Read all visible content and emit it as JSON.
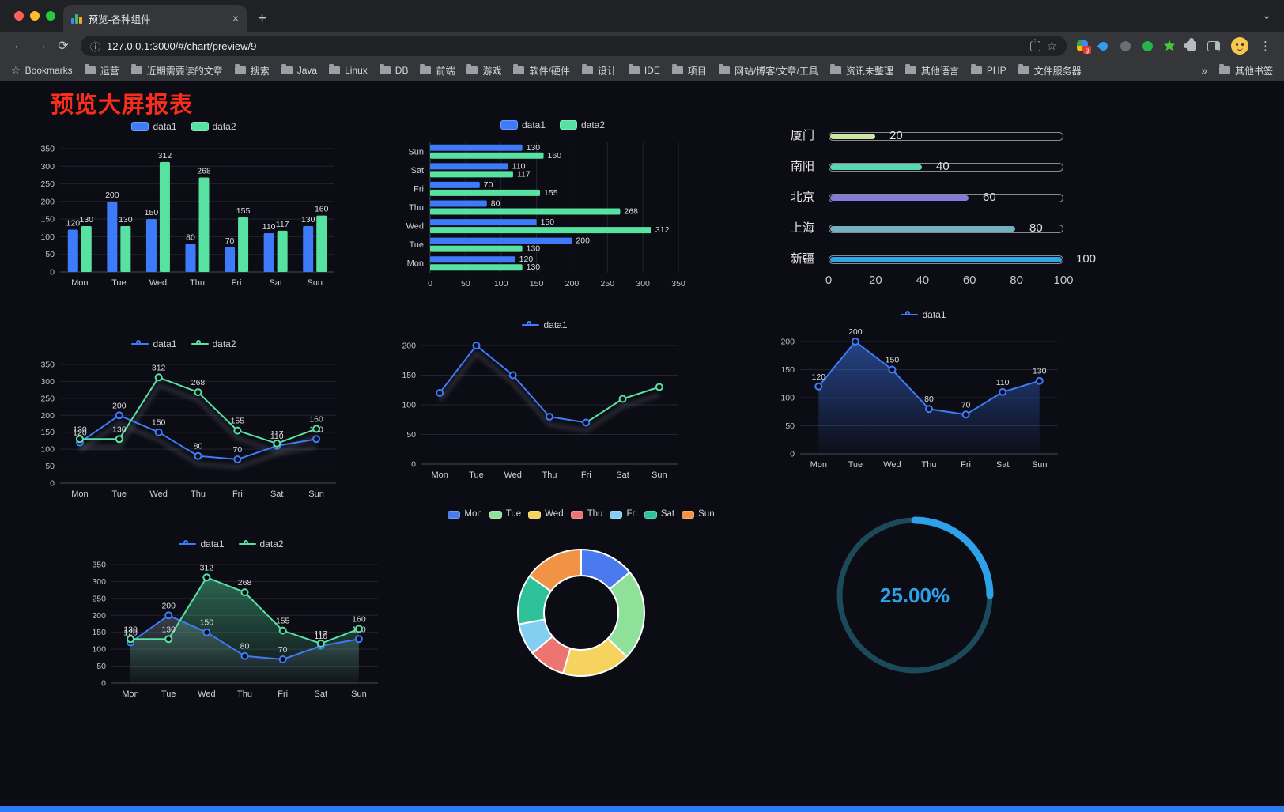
{
  "browser": {
    "tab_title": "预览-各种组件",
    "url": "127.0.0.1:3000/#/chart/preview/9",
    "traffic_light_colors": [
      "#ff5f57",
      "#febc2e",
      "#28c840"
    ],
    "bookmarks_bar": {
      "bookmarks_label": "Bookmarks",
      "folders": [
        "运营",
        "近期需要读的文章",
        "搜索",
        "Java",
        "Linux",
        "DB",
        "前端",
        "游戏",
        "软件/硬件",
        "设计",
        "IDE",
        "项目",
        "网站/博客/文章/工具",
        "资讯未整理",
        "其他语言",
        "PHP",
        "文件服务器"
      ],
      "overflow_label": "»",
      "other_bookmarks_label": "其他书签"
    }
  },
  "icons": {
    "back": "←",
    "forward": "→",
    "refresh": "⟳",
    "site_info": "ⓘ",
    "bookmark_star": "☆",
    "bookmarks_bar_star": "☆",
    "menu": "⋮",
    "new_tab": "+",
    "tab_close": "×",
    "tab_strip_chevron": "⌄",
    "extension_badge": "g"
  },
  "page": {
    "title": "预览大屏报表",
    "title_color": "#fa2c1c",
    "background": "#0c0c14",
    "footer_color": "#2b7cf0"
  },
  "chart_data": [
    {
      "id": "grouped-bar",
      "type": "bar",
      "categories": [
        "Mon",
        "Tue",
        "Wed",
        "Thu",
        "Fri",
        "Sat",
        "Sun"
      ],
      "series": [
        {
          "name": "data1",
          "color": "#3e7bfa",
          "values": [
            120,
            200,
            150,
            80,
            70,
            110,
            130
          ]
        },
        {
          "name": "data2",
          "color": "#58e2a2",
          "values": [
            130,
            130,
            312,
            268,
            155,
            117,
            160
          ]
        }
      ],
      "ylim": [
        0,
        350
      ],
      "yticks": [
        0,
        50,
        100,
        150,
        200,
        250,
        300,
        350
      ],
      "show_value_labels": true,
      "legend_position": "top",
      "grid": true
    },
    {
      "id": "horizontal-bar",
      "type": "bar",
      "orientation": "horizontal",
      "categories": [
        "Mon",
        "Tue",
        "Wed",
        "Thu",
        "Fri",
        "Sat",
        "Sun"
      ],
      "series": [
        {
          "name": "data1",
          "color": "#3e7bfa",
          "values": [
            120,
            200,
            150,
            80,
            70,
            110,
            130
          ]
        },
        {
          "name": "data2",
          "color": "#58e2a2",
          "values": [
            130,
            130,
            312,
            268,
            155,
            117,
            160
          ]
        }
      ],
      "xlim": [
        0,
        350
      ],
      "xticks": [
        0,
        50,
        100,
        150,
        200,
        250,
        300,
        350
      ],
      "show_value_labels": true,
      "legend_position": "top"
    },
    {
      "id": "city-progress-bars",
      "type": "bar",
      "orientation": "horizontal-progress",
      "categories": [
        "厦门",
        "南阳",
        "北京",
        "上海",
        "新疆"
      ],
      "values": [
        20,
        40,
        60,
        80,
        100
      ],
      "colors": [
        "#cfe6a2",
        "#57d8b0",
        "#837bd8",
        "#74b0c2",
        "#2ea6e6"
      ],
      "xlim": [
        0,
        100
      ],
      "xticks": [
        0,
        20,
        40,
        60,
        80,
        100
      ],
      "show_value_labels": true
    },
    {
      "id": "line-two-series",
      "type": "line",
      "categories": [
        "Mon",
        "Tue",
        "Wed",
        "Thu",
        "Fri",
        "Sat",
        "Sun"
      ],
      "series": [
        {
          "name": "data1",
          "color": "#3e7bfa",
          "values": [
            120,
            200,
            150,
            80,
            70,
            110,
            130
          ],
          "shadow": true
        },
        {
          "name": "data2",
          "color": "#58e2a2",
          "values": [
            130,
            130,
            312,
            268,
            155,
            117,
            160
          ],
          "shadow": true
        }
      ],
      "ylim": [
        0,
        350
      ],
      "yticks": [
        0,
        50,
        100,
        150,
        200,
        250,
        300,
        350
      ],
      "show_value_labels": true,
      "legend_position": "top"
    },
    {
      "id": "line-gradient",
      "type": "line",
      "categories": [
        "Mon",
        "Tue",
        "Wed",
        "Thu",
        "Fri",
        "Sat",
        "Sun"
      ],
      "series": [
        {
          "name": "data1",
          "color": "#3e7bfa",
          "color_tail": "#58e2a2",
          "tail_from_index": 4,
          "values": [
            120,
            200,
            150,
            80,
            70,
            110,
            130
          ],
          "shadow": true
        }
      ],
      "ylim": [
        0,
        200
      ],
      "yticks": [
        0,
        50,
        100,
        150,
        200
      ],
      "show_value_labels": false,
      "legend_position": "top"
    },
    {
      "id": "line-area",
      "type": "line",
      "categories": [
        "Mon",
        "Tue",
        "Wed",
        "Thu",
        "Fri",
        "Sat",
        "Sun"
      ],
      "series": [
        {
          "name": "data1",
          "color": "#3e7bfa",
          "values": [
            120,
            200,
            150,
            80,
            70,
            110,
            130
          ],
          "area": true,
          "area_opacity": 0.5
        }
      ],
      "ylim": [
        0,
        200
      ],
      "yticks": [
        0,
        50,
        100,
        150,
        200
      ],
      "show_value_labels": true,
      "legend_position": "top"
    },
    {
      "id": "line-two-series-area",
      "type": "line",
      "categories": [
        "Mon",
        "Tue",
        "Wed",
        "Thu",
        "Fri",
        "Sat",
        "Sun"
      ],
      "series": [
        {
          "name": "data1",
          "color": "#3e7bfa",
          "values": [
            120,
            200,
            150,
            80,
            70,
            110,
            130
          ],
          "area": true,
          "area_color": "#9fb2c2",
          "area_opacity": 0.3
        },
        {
          "name": "data2",
          "color": "#58e2a2",
          "values": [
            130,
            130,
            312,
            268,
            155,
            117,
            160
          ],
          "area": true,
          "area_opacity": 0.42
        }
      ],
      "ylim": [
        0,
        350
      ],
      "yticks": [
        0,
        50,
        100,
        150,
        200,
        250,
        300,
        350
      ],
      "show_value_labels": true,
      "legend_position": "top"
    },
    {
      "id": "weekday-donut",
      "type": "pie",
      "inner_radius_ratio": 0.59,
      "categories": [
        "Mon",
        "Tue",
        "Wed",
        "Thu",
        "Fri",
        "Sat",
        "Sun"
      ],
      "values": [
        120,
        200,
        150,
        80,
        70,
        110,
        130
      ],
      "colors": [
        "#4b79ee",
        "#8fe098",
        "#f6d35e",
        "#ec7572",
        "#82cff2",
        "#2ec19a",
        "#f19345"
      ],
      "legend_position": "top"
    },
    {
      "id": "percent-gauge",
      "type": "gauge",
      "value_percent": 25,
      "label": "25.00%",
      "color": "#2da2e8",
      "track_color": "#1d4a5a"
    }
  ]
}
